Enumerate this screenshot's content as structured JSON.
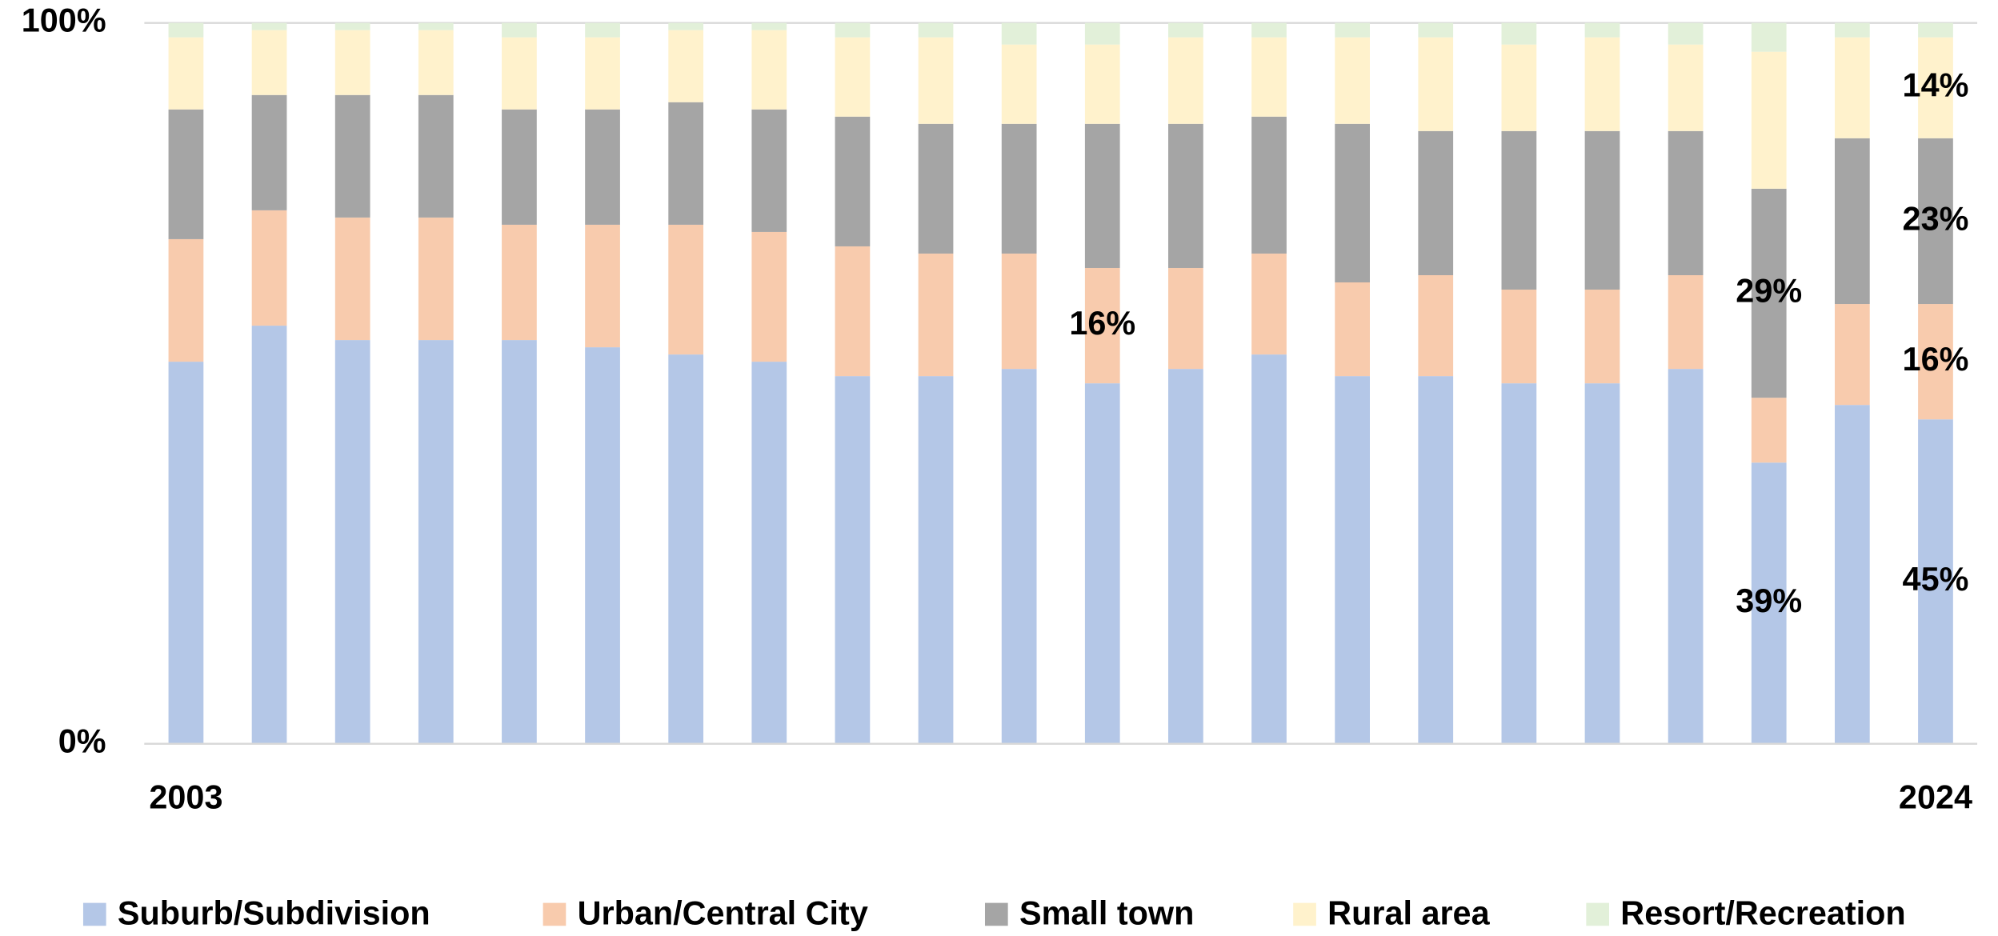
{
  "chart_data": {
    "type": "stacked_bar_100",
    "categories": [
      "2003",
      null,
      null,
      null,
      null,
      null,
      null,
      null,
      null,
      null,
      null,
      null,
      null,
      null,
      null,
      null,
      null,
      null,
      null,
      null,
      null,
      "2024"
    ],
    "series": [
      {
        "name": "Suburb/Subdivision",
        "color": "#b4c7e7",
        "values": [
          53,
          58,
          56,
          56,
          56,
          55,
          54,
          53,
          51,
          51,
          52,
          50,
          52,
          54,
          51,
          51,
          50,
          50,
          52,
          39,
          47,
          45
        ],
        "value_labels": [
          null,
          null,
          null,
          null,
          null,
          null,
          null,
          null,
          null,
          null,
          null,
          null,
          null,
          null,
          null,
          null,
          null,
          null,
          null,
          "39%",
          null,
          "45%"
        ]
      },
      {
        "name": "Urban/Central City",
        "color": "#f8cbad",
        "values": [
          17,
          16,
          17,
          17,
          16,
          17,
          18,
          18,
          18,
          17,
          16,
          16,
          14,
          14,
          13,
          14,
          13,
          13,
          13,
          9,
          14,
          16
        ],
        "value_labels": [
          null,
          null,
          null,
          null,
          null,
          null,
          null,
          null,
          null,
          null,
          null,
          "16%",
          null,
          null,
          null,
          null,
          null,
          null,
          null,
          null,
          null,
          "16%"
        ]
      },
      {
        "name": "Small town",
        "color": "#a5a5a5",
        "values": [
          18,
          16,
          17,
          17,
          16,
          16,
          17,
          17,
          18,
          18,
          18,
          20,
          20,
          19,
          22,
          20,
          22,
          22,
          20,
          29,
          23,
          23
        ],
        "value_labels": [
          null,
          null,
          null,
          null,
          null,
          null,
          null,
          null,
          null,
          null,
          null,
          null,
          null,
          null,
          null,
          null,
          null,
          null,
          null,
          "29%",
          null,
          "23%"
        ]
      },
      {
        "name": "Rural area",
        "color": "#fff2cc",
        "values": [
          10,
          9,
          9,
          9,
          10,
          10,
          10,
          11,
          11,
          12,
          11,
          11,
          12,
          11,
          12,
          13,
          12,
          13,
          12,
          19,
          14,
          14
        ],
        "value_labels": [
          null,
          null,
          null,
          null,
          null,
          null,
          null,
          null,
          null,
          null,
          null,
          null,
          null,
          null,
          null,
          null,
          null,
          null,
          null,
          null,
          null,
          "14%"
        ]
      },
      {
        "name": "Resort/Recreation",
        "color": "#e2f0d9",
        "values": [
          2,
          1,
          1,
          1,
          2,
          2,
          1,
          1,
          2,
          2,
          3,
          3,
          2,
          2,
          2,
          2,
          3,
          2,
          3,
          4,
          2,
          2
        ]
      }
    ],
    "ylim": [
      0,
      100
    ],
    "yticks": [
      {
        "value": 0,
        "label": "0%"
      },
      {
        "value": 100,
        "label": "100%"
      }
    ],
    "grid": true,
    "legend": "bottom"
  }
}
